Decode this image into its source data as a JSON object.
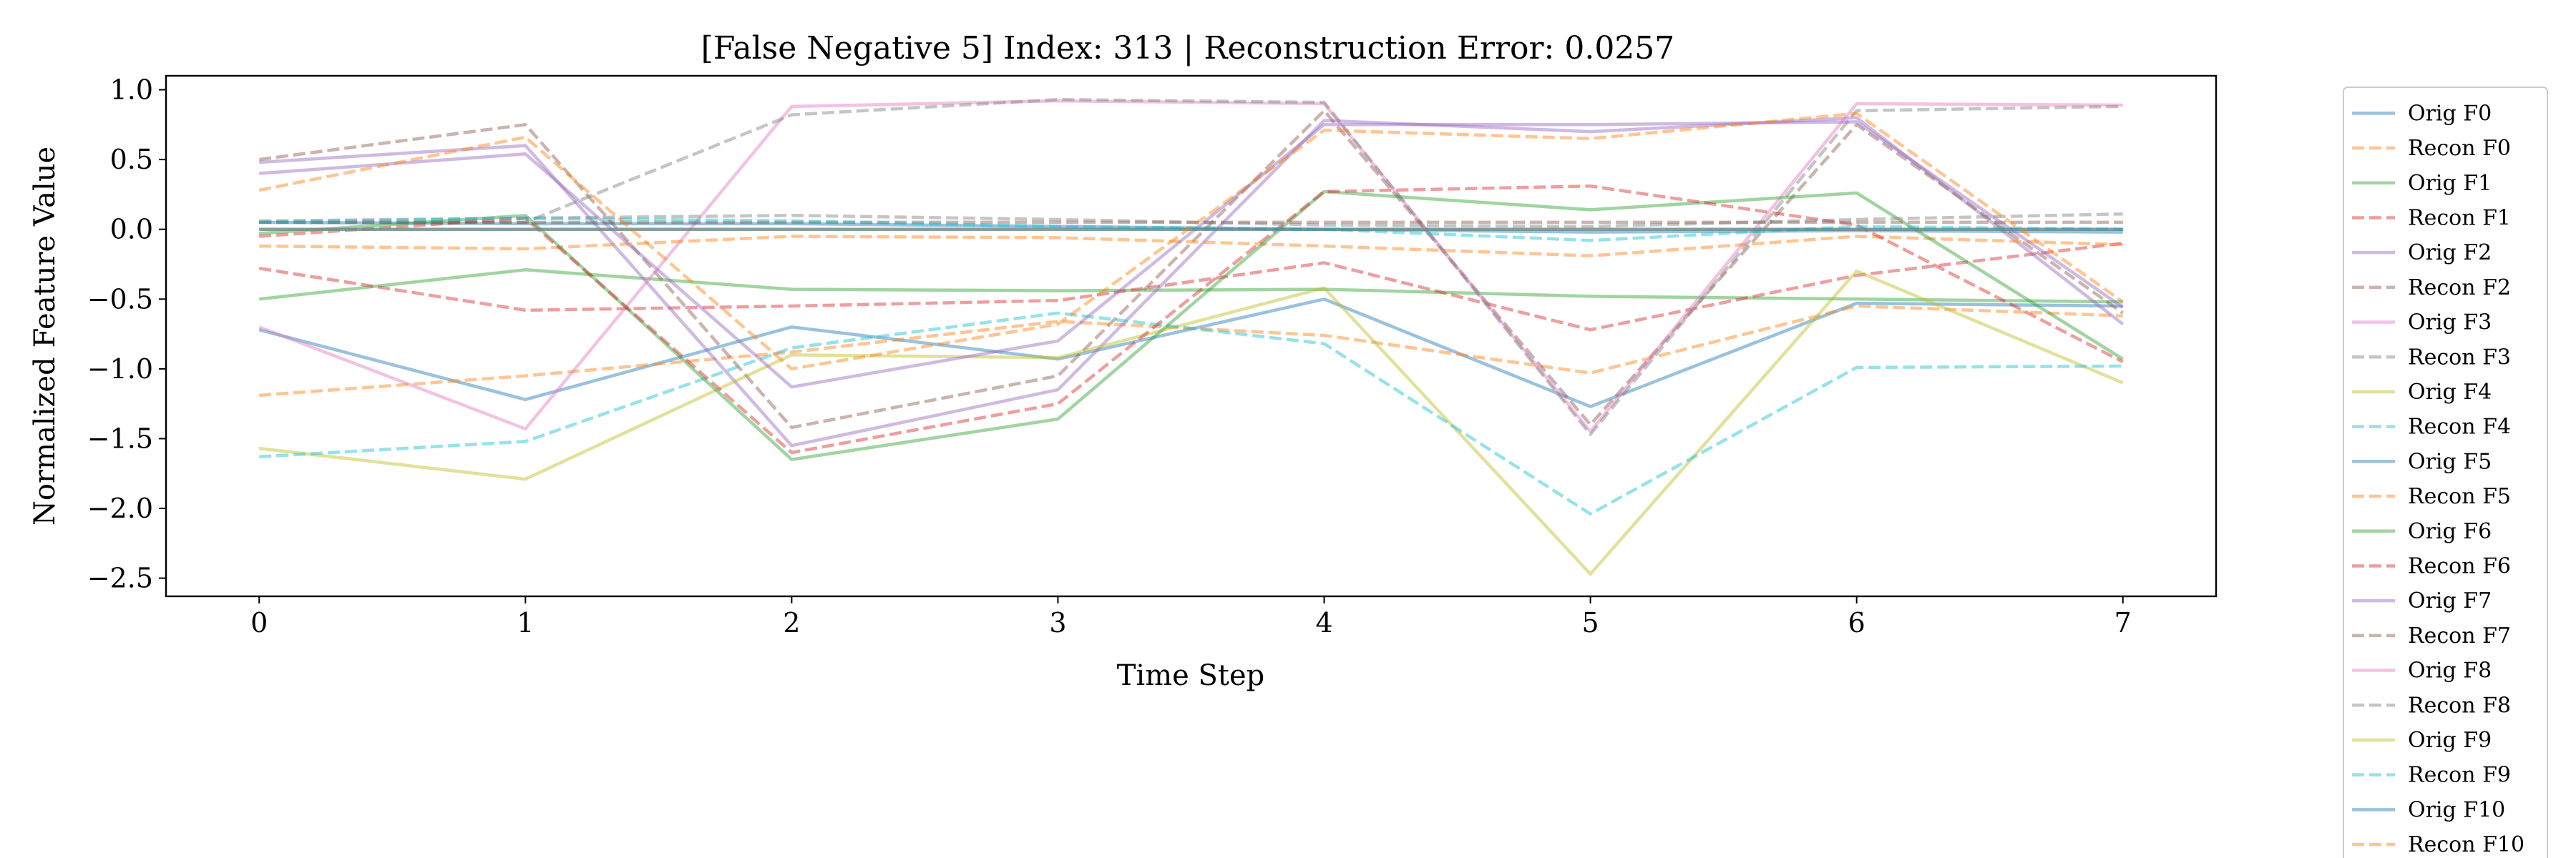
{
  "chart_data": {
    "type": "line",
    "title": "[False Negative 5] Index: 313 | Reconstruction Error: 0.0257",
    "xlabel": "Time Step",
    "ylabel": "Normalized Feature Value",
    "xlim": [
      -0.35,
      7.35
    ],
    "ylim": [
      -2.63,
      1.1
    ],
    "xticks": [
      0,
      1,
      2,
      3,
      4,
      5,
      6,
      7
    ],
    "xtick_labels": [
      "0",
      "1",
      "2",
      "3",
      "4",
      "5",
      "6",
      "7"
    ],
    "yticks": [
      1.0,
      0.5,
      0.0,
      -0.5,
      -1.0,
      -1.5,
      -2.0,
      -2.5
    ],
    "ytick_labels": [
      "1.0",
      "0.5",
      "0.0",
      "−0.5",
      "−1.0",
      "−1.5",
      "−2.0",
      "−2.5"
    ],
    "grid": false,
    "legend": "outside-right",
    "x": [
      0,
      1,
      2,
      3,
      4,
      5,
      6,
      7
    ],
    "series": [
      {
        "name": "Orig F0",
        "style": "solid",
        "color": "#1f77b4",
        "values": [
          -0.72,
          -1.22,
          -0.7,
          -0.93,
          -0.5,
          -1.27,
          -0.53,
          -0.55
        ]
      },
      {
        "name": "Recon F0",
        "style": "dashed",
        "color": "#ff7f0e",
        "values": [
          -1.19,
          -1.05,
          -0.88,
          -0.66,
          -0.76,
          -1.03,
          -0.55,
          -0.62
        ]
      },
      {
        "name": "Orig F1",
        "style": "solid",
        "color": "#2ca02c",
        "values": [
          -0.5,
          -0.29,
          -0.43,
          -0.44,
          -0.43,
          -0.48,
          -0.5,
          -0.52
        ]
      },
      {
        "name": "Recon F1",
        "style": "dashed",
        "color": "#d62728",
        "values": [
          -0.28,
          -0.58,
          -0.55,
          -0.51,
          -0.24,
          -0.72,
          -0.33,
          -0.1
        ]
      },
      {
        "name": "Orig F2",
        "style": "solid",
        "color": "#9467bd",
        "values": [
          0.48,
          0.6,
          -1.55,
          -1.15,
          0.78,
          0.7,
          0.8,
          -0.68
        ]
      },
      {
        "name": "Recon F2",
        "style": "dashed",
        "color": "#8c564b",
        "values": [
          0.5,
          0.75,
          -1.42,
          -1.05,
          0.85,
          -1.4,
          0.75,
          -0.6
        ]
      },
      {
        "name": "Orig F3",
        "style": "solid",
        "color": "#e377c2",
        "values": [
          -0.7,
          -1.43,
          0.88,
          0.92,
          0.9,
          -1.45,
          0.9,
          0.89
        ]
      },
      {
        "name": "Recon F3",
        "style": "dashed",
        "color": "#7f7f7f",
        "values": [
          0.05,
          0.05,
          0.82,
          0.93,
          0.91,
          -1.47,
          0.85,
          0.88
        ]
      },
      {
        "name": "Orig F4",
        "style": "solid",
        "color": "#bcbd22",
        "values": [
          -1.57,
          -1.79,
          -0.9,
          -0.92,
          -0.42,
          -2.47,
          -0.3,
          -1.1
        ]
      },
      {
        "name": "Recon F4",
        "style": "dashed",
        "color": "#17becf",
        "values": [
          -1.63,
          -1.52,
          -0.85,
          -0.6,
          -0.82,
          -2.04,
          -0.99,
          -0.98
        ]
      },
      {
        "name": "Orig F5",
        "style": "solid",
        "color": "#1f77b4",
        "values": [
          0.05,
          0.04,
          0.04,
          0.02,
          0.0,
          -0.02,
          -0.01,
          -0.02
        ]
      },
      {
        "name": "Recon F5",
        "style": "dashed",
        "color": "#ff7f0e",
        "values": [
          -0.12,
          -0.14,
          -0.05,
          -0.06,
          -0.12,
          -0.19,
          -0.05,
          -0.11
        ]
      },
      {
        "name": "Orig F6",
        "style": "solid",
        "color": "#2ca02c",
        "values": [
          -0.03,
          0.1,
          -1.65,
          -1.36,
          0.27,
          0.14,
          0.26,
          -0.93
        ]
      },
      {
        "name": "Recon F6",
        "style": "dashed",
        "color": "#d62728",
        "values": [
          -0.05,
          0.08,
          -1.6,
          -1.25,
          0.27,
          0.31,
          0.03,
          -0.95
        ]
      },
      {
        "name": "Orig F7",
        "style": "solid",
        "color": "#9467bd",
        "values": [
          0.4,
          0.54,
          -1.13,
          -0.8,
          0.75,
          0.75,
          0.77,
          -0.56
        ]
      },
      {
        "name": "Recon F7",
        "style": "dashed",
        "color": "#8c564b",
        "values": [
          0.05,
          0.05,
          0.05,
          0.05,
          0.05,
          0.05,
          0.05,
          0.05
        ]
      },
      {
        "name": "Orig F8",
        "style": "solid",
        "color": "#e377c2",
        "values": [
          0.0,
          0.0,
          0.0,
          0.0,
          0.0,
          0.0,
          0.0,
          0.0
        ]
      },
      {
        "name": "Recon F8",
        "style": "dashed",
        "color": "#7f7f7f",
        "values": [
          0.06,
          0.08,
          0.1,
          0.07,
          0.03,
          0.02,
          0.07,
          0.11
        ]
      },
      {
        "name": "Orig F9",
        "style": "solid",
        "color": "#bcbd22",
        "values": [
          0.0,
          0.0,
          0.0,
          0.0,
          0.0,
          0.0,
          0.0,
          0.0
        ]
      },
      {
        "name": "Recon F9",
        "style": "dashed",
        "color": "#17becf",
        "values": [
          0.05,
          0.08,
          0.06,
          0.02,
          0.0,
          -0.08,
          0.02,
          0.0
        ]
      },
      {
        "name": "Orig F10",
        "style": "solid",
        "color": "#1f77b4",
        "values": [
          0.0,
          0.0,
          0.0,
          0.0,
          0.0,
          0.0,
          0.0,
          0.0
        ]
      },
      {
        "name": "Recon F10",
        "style": "dashed",
        "color": "#ff7f0e",
        "values": [
          0.28,
          0.66,
          -1.0,
          -0.68,
          0.71,
          0.65,
          0.83,
          -0.52
        ]
      }
    ]
  }
}
